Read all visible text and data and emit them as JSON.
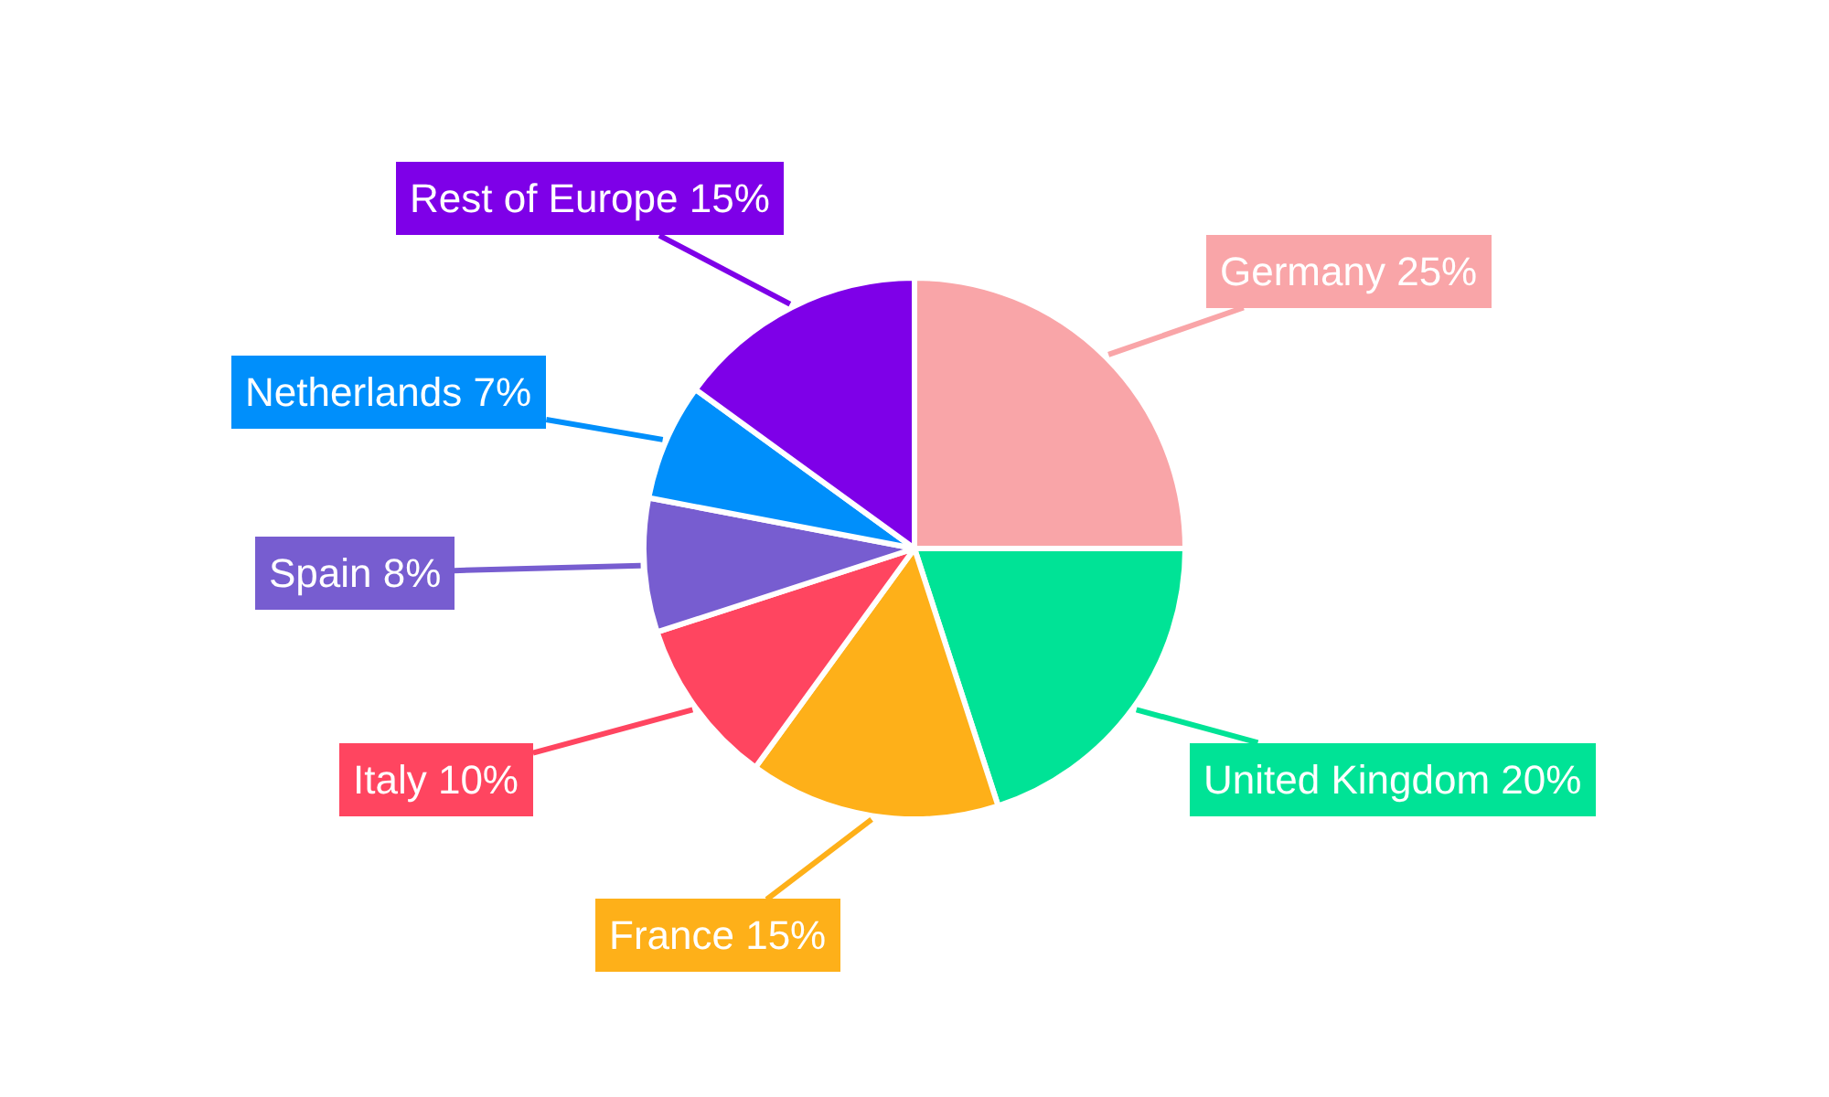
{
  "chart_data": {
    "type": "pie",
    "categories": [
      "Germany",
      "United Kingdom",
      "France",
      "Italy",
      "Spain",
      "Netherlands",
      "Rest of Europe"
    ],
    "values": [
      25,
      20,
      15,
      10,
      8,
      7,
      15
    ],
    "value_labels": [
      "25%",
      "20%",
      "15%",
      "10%",
      "8%",
      "7%",
      "15%"
    ],
    "colors": [
      "#f9a5a8",
      "#00e396",
      "#feb019",
      "#ff4560",
      "#775dd0",
      "#008ffb",
      "#7e00e8"
    ],
    "legend": false
  }
}
